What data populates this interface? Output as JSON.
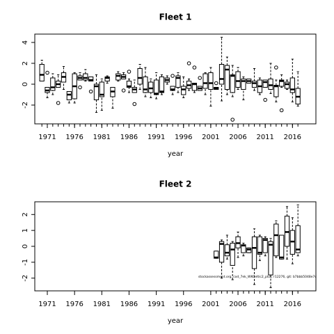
{
  "chart_data": [
    {
      "type": "box",
      "title": "Fleet 1",
      "x_label": "year",
      "xlim": [
        1968.7,
        2020.3
      ],
      "xticks": [
        1971,
        1976,
        1981,
        1986,
        1991,
        1996,
        2001,
        2006,
        2011,
        2016
      ],
      "ylim": [
        -3.8,
        4.8
      ],
      "yticks": [
        -2,
        0,
        2,
        4
      ],
      "x": [
        1970,
        1971,
        1972,
        1973,
        1974,
        1975,
        1976,
        1977,
        1978,
        1979,
        1980,
        1981,
        1982,
        1983,
        1984,
        1985,
        1986,
        1987,
        1988,
        1989,
        1990,
        1991,
        1992,
        1993,
        1994,
        1995,
        1996,
        1997,
        1998,
        1999,
        2000,
        2001,
        2002,
        2003,
        2004,
        2005,
        2006,
        2007,
        2008,
        2009,
        2010,
        2011,
        2012,
        2013,
        2014,
        2015,
        2016,
        2017
      ],
      "min": [
        0.3,
        -1.3,
        -1.0,
        -0.3,
        -0.5,
        -1.8,
        -1.8,
        0.4,
        0.3,
        0.3,
        -2.7,
        -2.5,
        0.1,
        -2.3,
        0.3,
        0.5,
        -0.8,
        -0.8,
        -0.5,
        -1.2,
        -1.3,
        -1.4,
        -1.0,
        0.0,
        -1.0,
        -0.8,
        -1.3,
        -0.6,
        -0.8,
        -0.6,
        -1.0,
        -2.1,
        -0.5,
        -1.6,
        -1.0,
        -1.2,
        -0.5,
        -1.5,
        0.1,
        -0.6,
        -1.0,
        -0.3,
        -0.9,
        -1.7,
        -0.3,
        -0.5,
        -1.7,
        -2.1
      ],
      "q1": [
        0.3,
        -0.8,
        -0.6,
        -0.3,
        0.2,
        -1.5,
        -1.4,
        0.4,
        0.4,
        0.3,
        -1.5,
        -1.2,
        0.3,
        -1.2,
        0.4,
        0.5,
        -0.3,
        -0.8,
        0.0,
        -0.8,
        -0.8,
        -1.0,
        -0.8,
        0.2,
        -0.6,
        -0.3,
        -1.0,
        -0.4,
        -0.6,
        -0.6,
        -0.4,
        -0.5,
        -0.5,
        0.0,
        -0.5,
        -0.8,
        -0.3,
        -0.5,
        0.1,
        -0.3,
        -0.8,
        -0.3,
        -0.5,
        -1.2,
        -0.2,
        -0.4,
        -0.8,
        -1.9
      ],
      "median": [
        0.9,
        -0.6,
        -0.3,
        0.0,
        0.7,
        -1.0,
        -0.2,
        0.6,
        0.6,
        0.4,
        -0.2,
        -1.0,
        0.6,
        -0.7,
        0.8,
        0.7,
        -0.2,
        -0.5,
        0.6,
        -0.5,
        -0.4,
        -0.9,
        -0.7,
        0.4,
        -0.5,
        0.6,
        -0.5,
        -0.1,
        0.0,
        -0.4,
        0.1,
        0.1,
        -0.4,
        0.5,
        1.4,
        0.8,
        0.3,
        0.3,
        0.3,
        0.1,
        -0.2,
        0.2,
        -0.1,
        -0.2,
        0.3,
        0.0,
        -0.5,
        -1.2
      ],
      "q3": [
        1.9,
        -0.3,
        0.6,
        0.3,
        1.1,
        -0.7,
        1.0,
        0.8,
        1.0,
        0.7,
        0.0,
        0.2,
        0.7,
        -0.3,
        1.0,
        0.9,
        0.3,
        -0.3,
        1.5,
        0.7,
        0.2,
        0.4,
        0.7,
        0.6,
        -0.2,
        0.8,
        -0.2,
        0.3,
        0.1,
        -0.2,
        1.0,
        1.1,
        -0.3,
        1.9,
        1.8,
        0.9,
        1.2,
        0.5,
        0.5,
        0.3,
        0.4,
        0.4,
        0.5,
        -0.1,
        0.4,
        0.2,
        0.6,
        -0.4
      ],
      "max": [
        2.3,
        -0.3,
        1.0,
        0.9,
        1.7,
        -0.7,
        1.1,
        1.1,
        1.4,
        0.7,
        0.9,
        0.5,
        0.8,
        -0.3,
        1.2,
        1.1,
        0.5,
        0.4,
        1.9,
        1.6,
        0.5,
        1.1,
        0.9,
        0.8,
        -0.2,
        1.1,
        0.7,
        0.5,
        0.1,
        -0.2,
        1.1,
        1.6,
        -0.3,
        4.5,
        2.6,
        1.8,
        1.6,
        0.7,
        0.5,
        1.5,
        0.6,
        0.4,
        2.0,
        0.4,
        0.9,
        0.4,
        2.4,
        1.2
      ],
      "outliers": {
        "x": [
          1971,
          1973,
          1977,
          1979,
          1985,
          1986,
          1987,
          1994,
          1997,
          1998,
          1999,
          2002,
          2005,
          2011,
          2013,
          2014
        ],
        "y": [
          1.1,
          -1.8,
          -0.3,
          -0.7,
          -0.6,
          1.2,
          -1.9,
          0.8,
          2.0,
          1.6,
          0.6,
          0.1,
          -3.4,
          -1.5,
          1.6,
          -2.5
        ]
      }
    },
    {
      "type": "box",
      "title": "Fleet 2",
      "x_label": "year",
      "note": "stockassessment.org, cod_7ek_WKCeltic2_plus, r12276, git: b7bbb5048e7c",
      "xlim": [
        1968.7,
        2020.3
      ],
      "xticks": [
        1971,
        1976,
        1981,
        1986,
        1991,
        1996,
        2001,
        2006,
        2011,
        2016
      ],
      "ylim": [
        -2.8,
        2.8
      ],
      "yticks": [
        -2,
        -1,
        0,
        1,
        2
      ],
      "x": [
        2002,
        2003,
        2004,
        2005,
        2006,
        2007,
        2008,
        2009,
        2010,
        2011,
        2012,
        2013,
        2014,
        2015,
        2016,
        2017
      ],
      "min": [
        -0.75,
        -2.0,
        -0.8,
        -2.1,
        -0.7,
        -0.6,
        -0.4,
        -2.4,
        -0.9,
        -0.6,
        -2.6,
        -0.7,
        -0.8,
        -0.8,
        -1.1,
        -0.6
      ],
      "q1": [
        -0.75,
        -1.0,
        -0.6,
        -1.2,
        -0.1,
        -0.4,
        -0.4,
        -1.4,
        -0.5,
        -0.4,
        -1.8,
        -0.6,
        -0.8,
        0.0,
        -0.5,
        -0.4
      ],
      "median": [
        -0.7,
        0.15,
        -0.4,
        -0.2,
        0.2,
        0.05,
        -0.2,
        -0.1,
        -0.4,
        0.4,
        0.1,
        0.7,
        -0.7,
        0.9,
        0.3,
        -0.2
      ],
      "q3": [
        -0.3,
        0.3,
        0.1,
        0.2,
        0.6,
        0.1,
        -0.1,
        0.6,
        0.6,
        0.5,
        0.3,
        1.4,
        0.7,
        1.9,
        1.0,
        1.3
      ],
      "max": [
        -0.3,
        0.4,
        0.7,
        0.3,
        0.9,
        0.2,
        -0.1,
        1.1,
        0.7,
        0.6,
        0.5,
        1.6,
        0.7,
        2.5,
        1.8,
        2.6
      ],
      "outliers": {
        "x": [],
        "y": []
      }
    }
  ]
}
